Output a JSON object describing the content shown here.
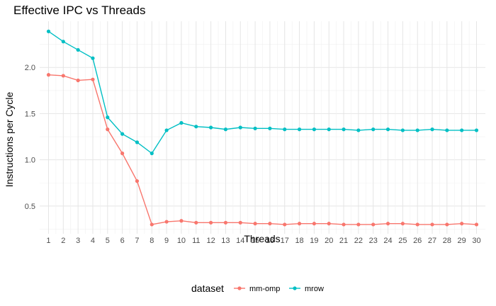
{
  "chart_data": {
    "type": "line",
    "title": "Effective IPC vs Threads",
    "xlabel": "Threads",
    "ylabel": "Instructions per Cycle",
    "x": [
      1,
      2,
      3,
      4,
      5,
      6,
      7,
      8,
      9,
      10,
      11,
      12,
      13,
      14,
      15,
      16,
      17,
      18,
      19,
      20,
      21,
      22,
      23,
      24,
      25,
      26,
      27,
      28,
      29,
      30
    ],
    "xlim": [
      0.4,
      30.6
    ],
    "ylim": [
      0.2,
      2.5
    ],
    "yticks": [
      0.5,
      1.0,
      1.5,
      2.0
    ],
    "ytick_labels": [
      "0.5",
      "1.0",
      "1.5",
      "2.0"
    ],
    "grid": true,
    "legend": {
      "title": "dataset",
      "position": "bottom"
    },
    "series": [
      {
        "name": "mm-omp",
        "color": "#F8766D",
        "values": [
          1.92,
          1.91,
          1.86,
          1.87,
          1.33,
          1.07,
          0.77,
          0.3,
          0.33,
          0.34,
          0.32,
          0.32,
          0.32,
          0.32,
          0.31,
          0.31,
          0.3,
          0.31,
          0.31,
          0.31,
          0.3,
          0.3,
          0.3,
          0.31,
          0.31,
          0.3,
          0.3,
          0.3,
          0.31,
          0.3
        ]
      },
      {
        "name": "mrow",
        "color": "#00BFC4",
        "values": [
          2.39,
          2.28,
          2.19,
          2.1,
          1.46,
          1.28,
          1.19,
          1.07,
          1.32,
          1.4,
          1.36,
          1.35,
          1.33,
          1.35,
          1.34,
          1.34,
          1.33,
          1.33,
          1.33,
          1.33,
          1.33,
          1.32,
          1.33,
          1.33,
          1.32,
          1.32,
          1.33,
          1.32,
          1.32,
          1.32
        ]
      }
    ]
  }
}
